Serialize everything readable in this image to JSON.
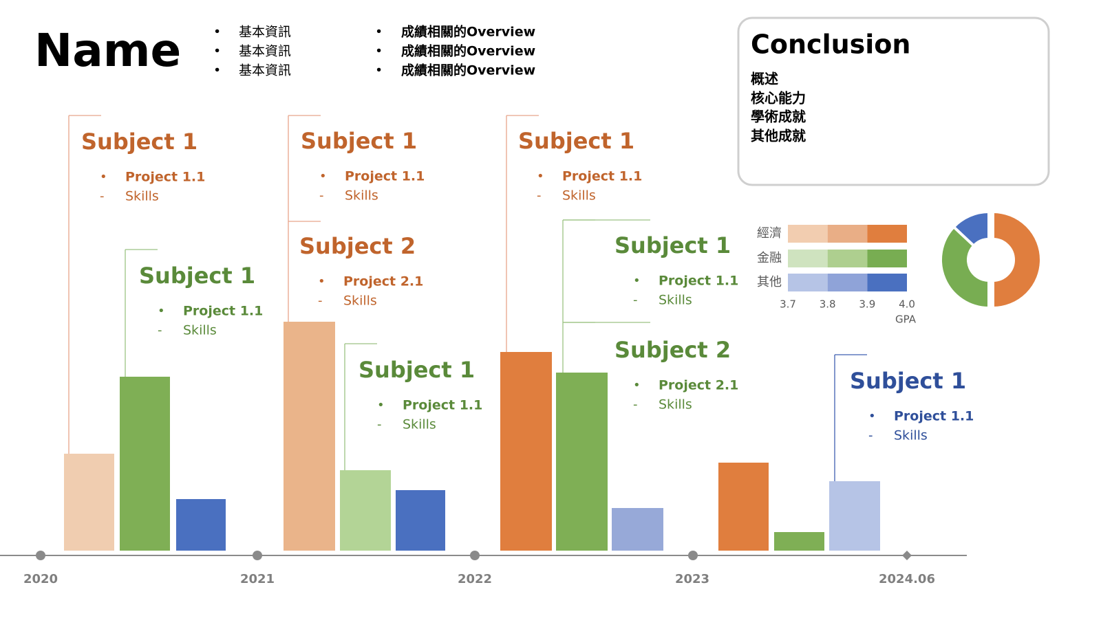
{
  "header": {
    "name": "Name",
    "info": [
      "基本資訊",
      "基本資訊",
      "基本資訊"
    ],
    "overview": [
      "成績相關的Overview",
      "成績相關的Overview",
      "成績相關的Overview"
    ]
  },
  "conclusion": {
    "title": "Conclusion",
    "items": [
      "概述",
      "核心能力",
      "學術成就",
      "其他成就"
    ]
  },
  "timeline": {
    "labels": [
      "2020",
      "2021",
      "2022",
      "2023",
      "2024.06"
    ]
  },
  "cards": [
    {
      "title": "Subject 1",
      "project": "Project 1.1",
      "skills": "Skills",
      "color": "#c0642c"
    },
    {
      "title": "Subject 1",
      "project": "Project 1.1",
      "skills": "Skills",
      "color": "#5a8a3a"
    },
    {
      "title": "Subject 1",
      "project": "Project 1.1",
      "skills": "Skills",
      "color": "#c0642c"
    },
    {
      "title": "Subject 2",
      "project": "Project 2.1",
      "skills": "Skills",
      "color": "#c0642c"
    },
    {
      "title": "Subject 1",
      "project": "Project 1.1",
      "skills": "Skills",
      "color": "#5a8a3a"
    },
    {
      "title": "Subject 1",
      "project": "Project 1.1",
      "skills": "Skills",
      "color": "#c0642c"
    },
    {
      "title": "Subject 1",
      "project": "Project 1.1",
      "skills": "Skills",
      "color": "#5a8a3a"
    },
    {
      "title": "Subject 2",
      "project": "Project 2.1",
      "skills": "Skills",
      "color": "#5a8a3a"
    },
    {
      "title": "Subject 1",
      "project": "Project 1.1",
      "skills": "Skills",
      "color": "#2f4f9a"
    }
  ],
  "chart_data": [
    {
      "type": "hbar",
      "categories": [
        "經濟",
        "金融",
        "其他"
      ],
      "series": [
        {
          "colors": [
            "#f2cdb0",
            "#cfe3bf",
            "#b6c4e6"
          ],
          "values": [
            0.1,
            0.1,
            0.1
          ]
        },
        {
          "colors": [
            "#e9ae86",
            "#aecf8f",
            "#8fa3d8"
          ],
          "values": [
            0.1,
            0.1,
            0.1
          ]
        },
        {
          "colors": [
            "#e07e3e",
            "#78ad52",
            "#4a70c0"
          ],
          "values": [
            0.1,
            0.1,
            0.1
          ]
        }
      ],
      "xlim": [
        3.7,
        4.0
      ],
      "xticks": [
        3.7,
        3.8,
        3.9,
        {
          "value": 4.0,
          "label": "4.0"
        }
      ],
      "xlabel": "GPA"
    },
    {
      "type": "pie",
      "values": [
        50,
        37,
        13
      ],
      "colors": [
        "#e07e3e",
        "#78ad52",
        "#4a70c0"
      ]
    }
  ]
}
